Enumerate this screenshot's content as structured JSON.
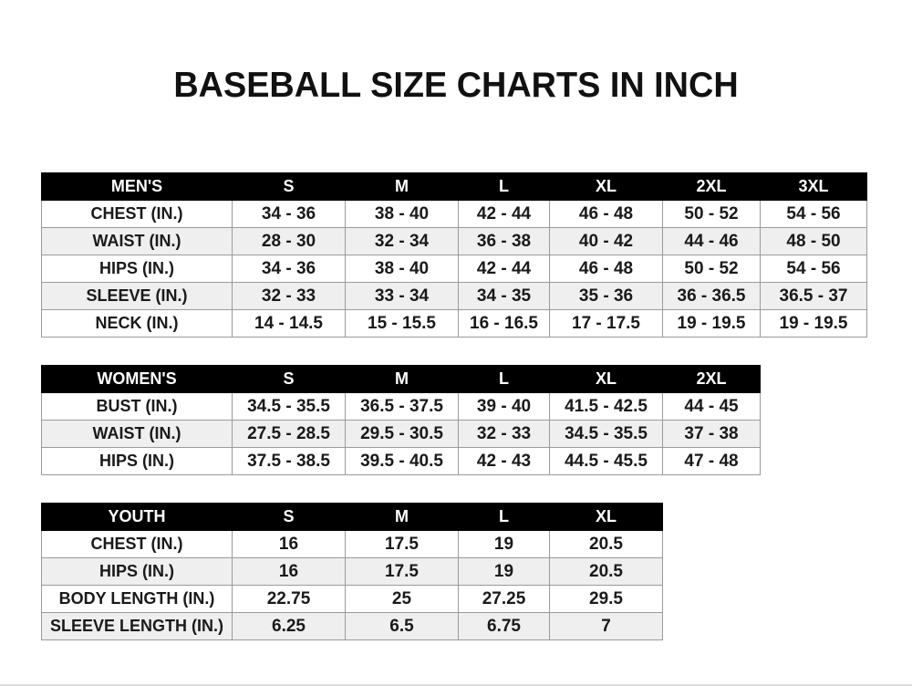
{
  "title": "BASEBALL SIZE CHARTS IN INCH",
  "colors": {
    "header_bg": "#000000",
    "header_text": "#ffffff",
    "alt_row": "#efefef"
  },
  "tables": [
    {
      "name": "mens",
      "header": [
        "MEN'S",
        "S",
        "M",
        "L",
        "XL",
        "2XL",
        "3XL"
      ],
      "rows": [
        [
          "CHEST (IN.)",
          "34 - 36",
          "38 - 40",
          "42 - 44",
          "46 - 48",
          "50 - 52",
          "54 - 56"
        ],
        [
          "WAIST (IN.)",
          "28 - 30",
          "32 - 34",
          "36 - 38",
          "40 - 42",
          "44 - 46",
          "48 - 50"
        ],
        [
          "HIPS (IN.)",
          "34 - 36",
          "38 - 40",
          "42 - 44",
          "46 - 48",
          "50 - 52",
          "54 - 56"
        ],
        [
          "SLEEVE (IN.)",
          "32 - 33",
          "33 - 34",
          "34 - 35",
          "35 - 36",
          "36 - 36.5",
          "36.5 - 37"
        ],
        [
          "NECK (IN.)",
          "14 - 14.5",
          "15 - 15.5",
          "16 - 16.5",
          "17 - 17.5",
          "19 - 19.5",
          "19 - 19.5"
        ]
      ]
    },
    {
      "name": "womens",
      "header": [
        "WOMEN'S",
        "S",
        "M",
        "L",
        "XL",
        "2XL"
      ],
      "rows": [
        [
          "BUST (IN.)",
          "34.5 - 35.5",
          "36.5 - 37.5",
          "39 - 40",
          "41.5 - 42.5",
          "44 - 45"
        ],
        [
          "WAIST (IN.)",
          "27.5 - 28.5",
          "29.5 - 30.5",
          "32 - 33",
          "34.5 - 35.5",
          "37 - 38"
        ],
        [
          "HIPS (IN.)",
          "37.5 - 38.5",
          "39.5 - 40.5",
          "42 - 43",
          "44.5 - 45.5",
          "47 - 48"
        ]
      ]
    },
    {
      "name": "youth",
      "header": [
        "YOUTH",
        "S",
        "M",
        "L",
        "XL"
      ],
      "rows": [
        [
          "CHEST (IN.)",
          "16",
          "17.5",
          "19",
          "20.5"
        ],
        [
          "HIPS (IN.)",
          "16",
          "17.5",
          "19",
          "20.5"
        ],
        [
          "BODY LENGTH (IN.)",
          "22.75",
          "25",
          "27.25",
          "29.5"
        ],
        [
          "SLEEVE LENGTH (IN.)",
          "6.25",
          "6.5",
          "6.75",
          "7"
        ]
      ]
    }
  ]
}
